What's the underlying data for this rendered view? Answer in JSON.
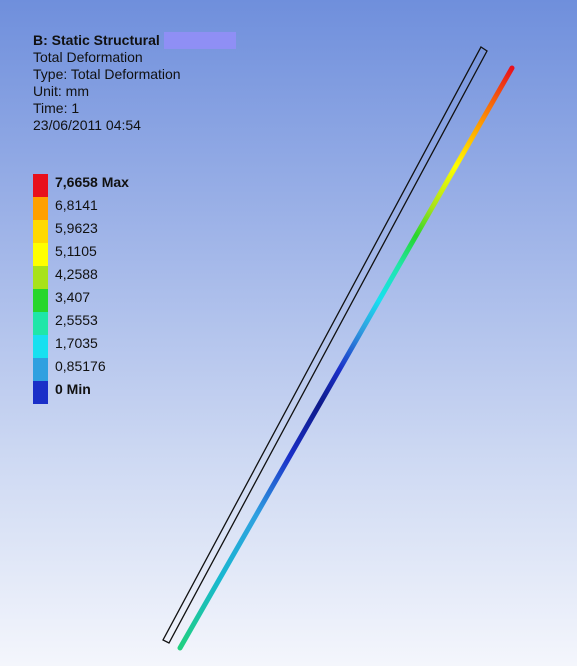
{
  "info": {
    "title": "B: Static Structural",
    "result_name": "Total Deformation",
    "type_line": "Type: Total Deformation",
    "unit_line": "Unit: mm",
    "time_line": "Time: 1",
    "timestamp": "23/06/2011 04:54"
  },
  "legend": {
    "max_label": "7,6658 Max",
    "min_label": "0 Min",
    "levels": [
      "7,6658 Max",
      "6,8141",
      "5,9623",
      "5,1105",
      "4,2588",
      "3,407",
      "2,5553",
      "1,7035",
      "0,85176",
      "0 Min"
    ],
    "colors": [
      "#e8101c",
      "#ffa000",
      "#ffd900",
      "#ffff00",
      "#a8e21a",
      "#27d62c",
      "#1fe6a8",
      "#18e0f0",
      "#2fa0e0",
      "#1a2fc8"
    ]
  },
  "colors": {
    "background_top": "#6f8fdc",
    "background_bottom": "#f4f6fc",
    "title_highlight": "#8f8ff5"
  }
}
